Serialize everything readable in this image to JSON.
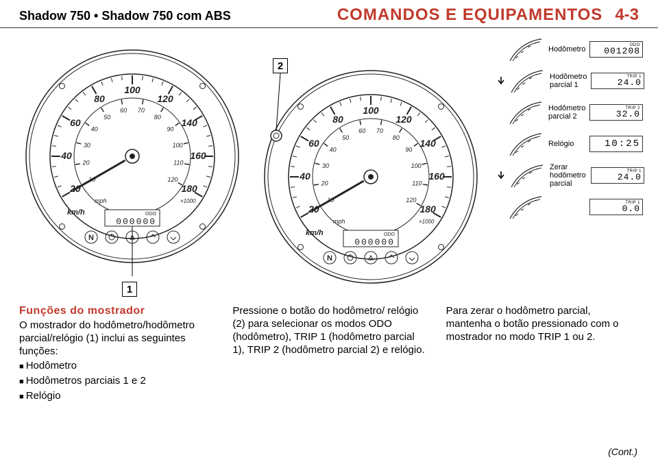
{
  "header": {
    "left": "Shadow 750 • Shadow 750 com ABS",
    "title": "COMANDOS E EQUIPAMENTOS",
    "page": "4-3",
    "title_color": "#c0392b"
  },
  "callouts": {
    "one": "1",
    "two": "2"
  },
  "gauge": {
    "outer_ticks": [
      "20",
      "40",
      "60",
      "80",
      "100",
      "120",
      "140",
      "160",
      "180"
    ],
    "inner_ticks": [
      "10",
      "20",
      "30",
      "40",
      "50",
      "60",
      "70",
      "80",
      "90",
      "100",
      "110",
      "120"
    ],
    "unit_outer": "km/h",
    "unit_inner": "mph",
    "odo_label": "ODO",
    "odo_value": "000000",
    "indicator_n": "N",
    "icon_right": "×1000",
    "stroke": "#222222"
  },
  "legend": {
    "rows": [
      {
        "arrow": false,
        "label": "Hodômetro",
        "lcd_top": "ODO",
        "lcd_val": "001208"
      },
      {
        "arrow": true,
        "label": "Hodômetro parcial 1",
        "lcd_top": "TRIP 1",
        "lcd_val": "24.0"
      },
      {
        "arrow": false,
        "label": "Hodômetro parcial 2",
        "lcd_top": "TRIP 2",
        "lcd_val": "32.0"
      },
      {
        "arrow": false,
        "label": "Relógio",
        "lcd_top": "",
        "lcd_val": "10:25"
      },
      {
        "arrow": true,
        "label": "Zerar hodômetro parcial",
        "lcd_top": "TRIP 1",
        "lcd_val": "24.0"
      },
      {
        "arrow": false,
        "label": "",
        "lcd_top": "TRIP 1",
        "lcd_val": "0.0"
      }
    ]
  },
  "text": {
    "funcoes": {
      "title": "Funções do mostrador",
      "title_color": "#c0392b",
      "body": "O mostrador do hodômetro/hodômetro parcial/relógio (1) inclui as seguintes funções:",
      "items": [
        "Hodômetro",
        "Hodômetros parciais 1 e 2",
        "Relógio"
      ]
    },
    "pressione": "Pressione o botão do hodômetro/ relógio (2) para selecionar os modos ODO (hodômetro), TRIP 1 (hodômetro parcial 1), TRIP 2 (hodômetro parcial 2) e relógio.",
    "zerar": "Para zerar o hodômetro parcial, mantenha o botão pressionado com o mostrador no modo TRIP 1 ou 2.",
    "cont": "(Cont.)"
  }
}
